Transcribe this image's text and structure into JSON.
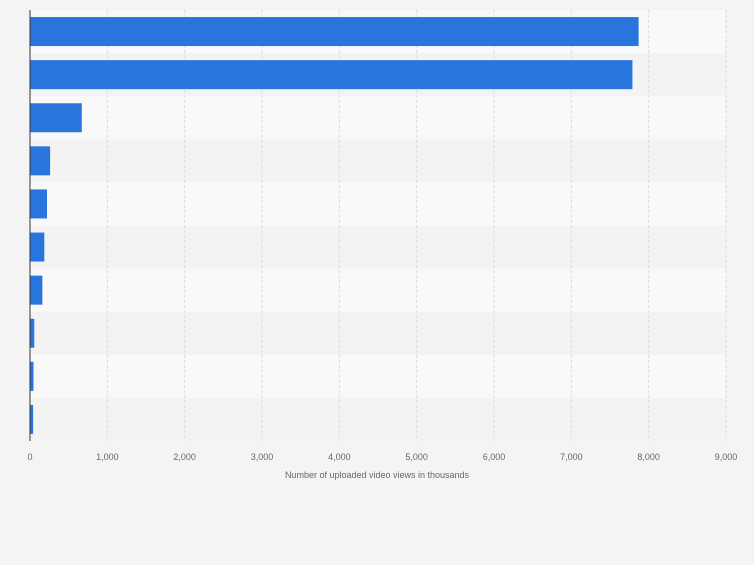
{
  "chart_data": {
    "type": "bar",
    "orientation": "horizontal",
    "title": "",
    "xlabel": "Number of uploaded video views in thousands",
    "ylabel": "",
    "xlim": [
      0,
      9000
    ],
    "xticks": [
      0,
      1000,
      2000,
      3000,
      4000,
      5000,
      6000,
      7000,
      8000,
      9000
    ],
    "xtick_labels": [
      "0",
      "1,000",
      "2,000",
      "3,000",
      "4,000",
      "5,000",
      "6,000",
      "7,000",
      "8,000",
      "9,000"
    ],
    "categories": [
      "",
      "",
      "",
      "",
      "",
      "",
      "",
      "",
      "",
      ""
    ],
    "values": [
      7870,
      7790,
      670,
      260,
      220,
      185,
      160,
      55,
      45,
      40
    ],
    "grid": true,
    "legend": "none",
    "colors": {
      "bar": "#2876dd",
      "band_light": "#f9f9f9",
      "band_dark": "#f3f3f3",
      "grid": "#dcdcdc",
      "axis": "#333333",
      "text": "#666666"
    }
  }
}
